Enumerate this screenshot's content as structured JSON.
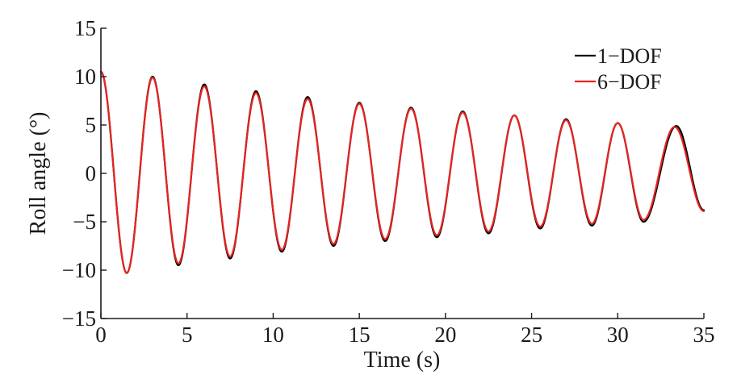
{
  "chart_data": {
    "type": "line",
    "xlabel": "Time (s)",
    "ylabel": "Roll angle (°)",
    "xlim": [
      0,
      35
    ],
    "ylim": [
      -15,
      15
    ],
    "xticks": [
      "0",
      "5",
      "10",
      "15",
      "20",
      "25",
      "30",
      "35"
    ],
    "yticks": [
      "−15",
      "−10",
      "−5",
      "0",
      "5",
      "10",
      "15"
    ],
    "grid": false,
    "legend_position": "top-right",
    "series": [
      {
        "name": "1−DOF",
        "color": "#000000",
        "x": [
          0,
          1.5,
          3.0,
          4.5,
          6.0,
          7.5,
          9.0,
          10.5,
          12.0,
          13.5,
          15.0,
          16.5,
          18.0,
          19.5,
          21.0,
          22.5,
          24.0,
          25.5,
          27.0,
          28.5,
          30.0,
          31.5,
          33.4,
          35.0
        ],
        "y": [
          10.5,
          -10.3,
          10.0,
          -9.5,
          9.2,
          -8.8,
          8.5,
          -8.1,
          7.9,
          -7.5,
          7.3,
          -7.0,
          6.8,
          -6.6,
          6.4,
          -6.2,
          6.0,
          -5.7,
          5.6,
          -5.4,
          5.2,
          -5.0,
          4.9,
          -3.8
        ]
      },
      {
        "name": "6−DOF",
        "color": "#e8231f",
        "x": [
          0,
          1.5,
          3.0,
          4.5,
          6.0,
          7.5,
          9.0,
          10.5,
          12.0,
          13.5,
          15.0,
          16.5,
          18.0,
          19.5,
          21.0,
          22.5,
          24.0,
          25.5,
          27.0,
          28.5,
          30.0,
          31.5,
          33.3,
          35.0
        ],
        "y": [
          10.5,
          -10.3,
          9.9,
          -9.3,
          9.0,
          -8.6,
          8.3,
          -7.9,
          7.7,
          -7.3,
          7.2,
          -6.8,
          6.7,
          -6.4,
          6.3,
          -6.0,
          6.0,
          -5.5,
          5.5,
          -5.2,
          5.2,
          -4.8,
          4.8,
          -3.9
        ]
      }
    ]
  }
}
